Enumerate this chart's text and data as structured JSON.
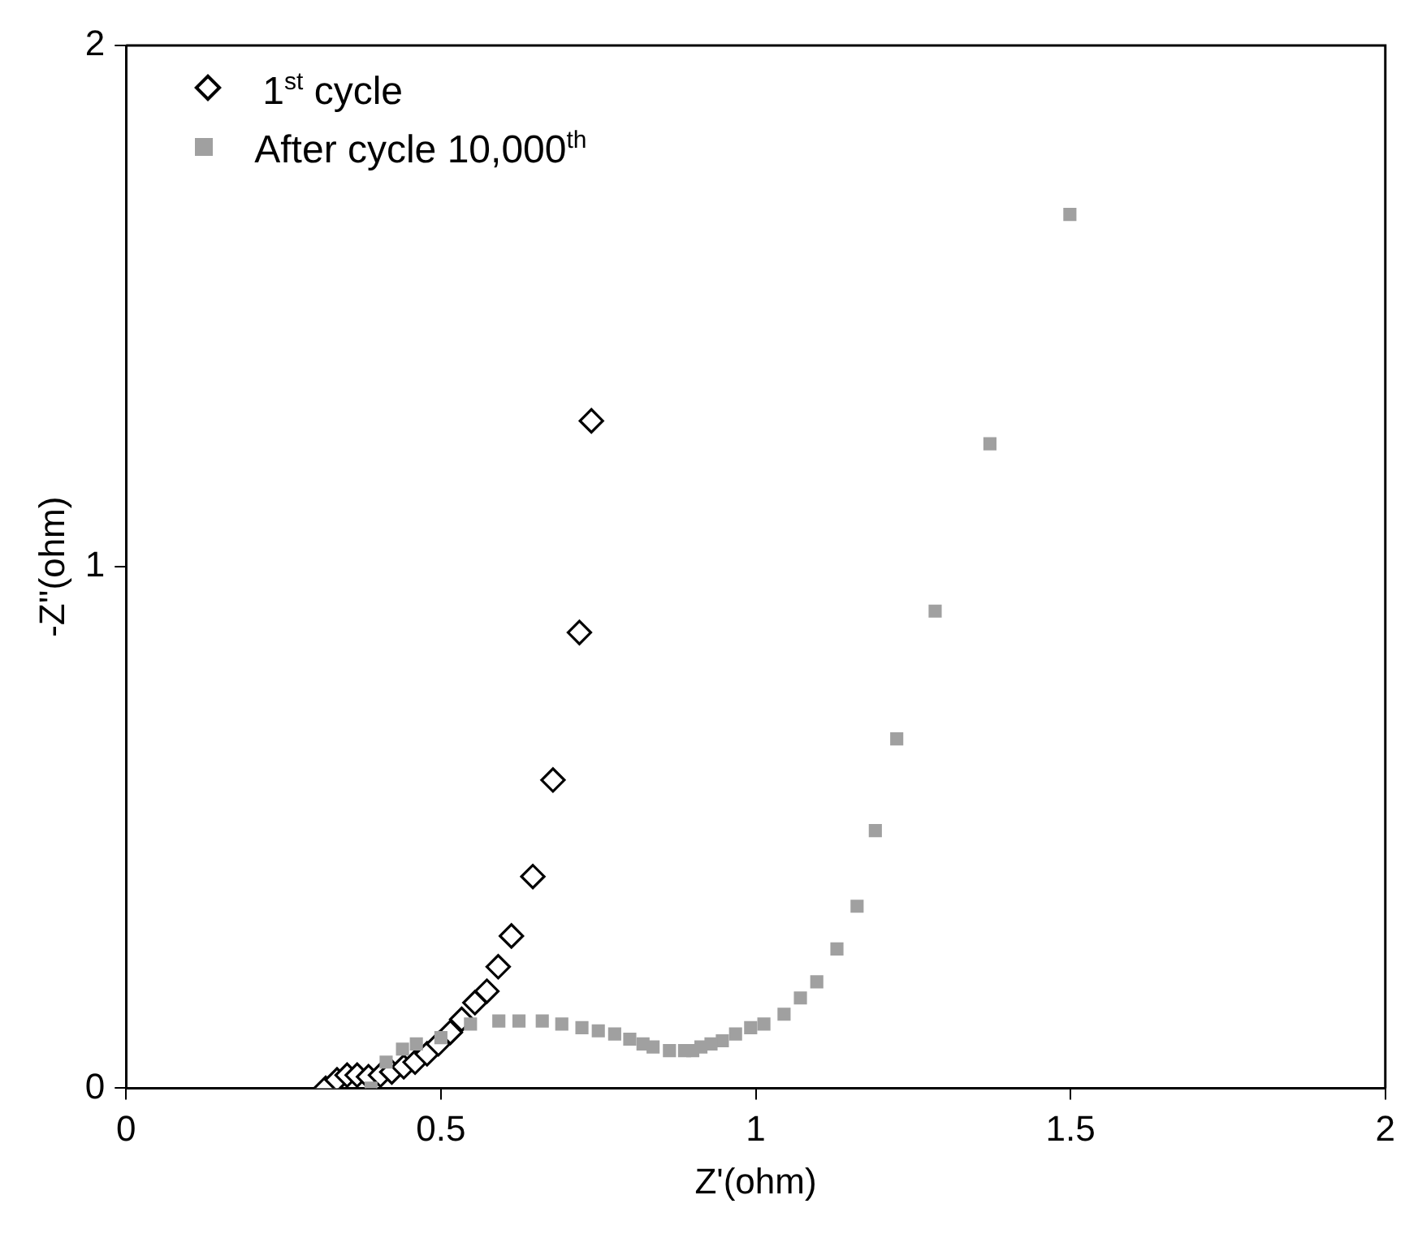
{
  "chart_data": {
    "type": "scatter",
    "xlabel": "Z'(ohm)",
    "ylabel": "-Z''(ohm)",
    "xlim": [
      0,
      2
    ],
    "xticks": [
      0,
      0.5,
      1,
      1.5,
      2
    ],
    "ylim": [
      0,
      2
    ],
    "yticks": [
      0,
      1,
      2
    ],
    "grid": false,
    "legend": "top left",
    "series": [
      {
        "name": "1$^{st}$ cycle",
        "color": "#000000",
        "marker": "diamond",
        "x": [
          0.317,
          0.335,
          0.351,
          0.367,
          0.385,
          0.404,
          0.422,
          0.441,
          0.459,
          0.478,
          0.496,
          0.515,
          0.533,
          0.554,
          0.573,
          0.591,
          0.612,
          0.646,
          0.678,
          0.72,
          0.739
        ],
        "values": [
          0,
          0.016,
          0.025,
          0.025,
          0.022,
          0.025,
          0.031,
          0.041,
          0.05,
          0.066,
          0.085,
          0.107,
          0.132,
          0.164,
          0.186,
          0.233,
          0.292,
          0.406,
          0.591,
          0.874,
          1.28
        ]
      },
      {
        "name": "After cycle 10,000$^{th}$",
        "color": "#a0a0a0",
        "marker": "square",
        "x": [
          0.389,
          0.413,
          0.439,
          0.461,
          0.5,
          0.547,
          0.592,
          0.624,
          0.661,
          0.692,
          0.724,
          0.75,
          0.776,
          0.8,
          0.821,
          0.837,
          0.863,
          0.887,
          0.9,
          0.913,
          0.929,
          0.947,
          0.968,
          0.992,
          1.013,
          1.045,
          1.071,
          1.097,
          1.129,
          1.161,
          1.19,
          1.224,
          1.285,
          1.372,
          1.499
        ],
        "values": [
          0,
          0.05,
          0.075,
          0.085,
          0.097,
          0.123,
          0.129,
          0.129,
          0.129,
          0.123,
          0.116,
          0.11,
          0.104,
          0.094,
          0.085,
          0.079,
          0.072,
          0.072,
          0.072,
          0.079,
          0.085,
          0.091,
          0.104,
          0.116,
          0.123,
          0.142,
          0.173,
          0.204,
          0.267,
          0.349,
          0.494,
          0.67,
          0.915,
          1.236,
          1.676
        ]
      }
    ]
  }
}
